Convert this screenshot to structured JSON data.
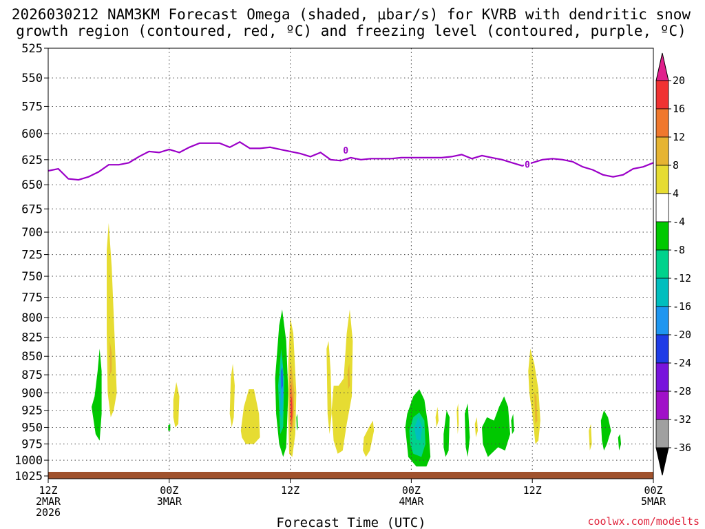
{
  "chart_data": {
    "type": "time-height-contour",
    "title_line1": "2026030212 NAM3KM Forecast Omega (shaded, μbar/s) for KVRB with dendritic snow",
    "title_line2": "growth region (contoured, red, ºC) and freezing level (contoured, purple, ºC)",
    "xlabel": "Forecast Time (UTC)",
    "credit": "coolwx.com/modelts",
    "y_ticks": [
      525,
      550,
      575,
      600,
      625,
      650,
      675,
      700,
      725,
      750,
      775,
      800,
      825,
      850,
      875,
      900,
      925,
      950,
      975,
      1000,
      1025
    ],
    "x_ticks": [
      {
        "hour": 0,
        "lines": [
          "12Z",
          "2MAR",
          "2026"
        ]
      },
      {
        "hour": 12,
        "lines": [
          "00Z",
          "3MAR"
        ]
      },
      {
        "hour": 24,
        "lines": [
          "12Z"
        ]
      },
      {
        "hour": 36,
        "lines": [
          "00Z",
          "4MAR"
        ]
      },
      {
        "hour": 48,
        "lines": [
          "12Z"
        ]
      },
      {
        "hour": 60,
        "lines": [
          "00Z",
          "5MAR"
        ]
      }
    ],
    "x_range_hours": [
      0,
      60
    ],
    "colorbar": {
      "labels": [
        "20",
        "16",
        "12",
        "8",
        "4",
        "-4",
        "-8",
        "-12",
        "-16",
        "-20",
        "-24",
        "-28",
        "-32",
        "-36"
      ],
      "colors": [
        "#e0208c",
        "#f03232",
        "#f0782d",
        "#e6b432",
        "#e6dc32",
        "#ffffff",
        "#00c800",
        "#00d28c",
        "#00bebe",
        "#1e96f0",
        "#1e3ce6",
        "#7814dc",
        "#a010c8",
        "#a0a0a0"
      ]
    },
    "freezing_level": {
      "label": "0",
      "label_at": [
        {
          "hour": 29.5,
          "p": 617
        },
        {
          "hour": 47.5,
          "p": 631
        }
      ],
      "hours": [
        0,
        1,
        2,
        3,
        4,
        5,
        6,
        7,
        8,
        9,
        10,
        11,
        12,
        13,
        14,
        15,
        16,
        17,
        18,
        19,
        20,
        21,
        22,
        23,
        24,
        25,
        26,
        27,
        28,
        29,
        30,
        31,
        32,
        33,
        34,
        35,
        36,
        37,
        38,
        39,
        40,
        41,
        42,
        43,
        44,
        45,
        46,
        47,
        48,
        49,
        50,
        51,
        52,
        53,
        54,
        55,
        56,
        57,
        58,
        59,
        60
      ],
      "pressure": [
        636,
        634,
        644,
        645,
        642,
        637,
        630,
        630,
        628,
        622,
        617,
        618,
        615,
        618,
        613,
        609,
        609,
        609,
        613,
        608,
        614,
        614,
        613,
        615,
        617,
        619,
        622,
        618,
        625,
        626,
        623,
        625,
        624,
        624,
        624,
        623,
        623,
        623,
        623,
        623,
        622,
        620,
        624,
        621,
        623,
        625,
        628,
        631,
        628,
        625,
        624,
        625,
        627,
        632,
        635,
        640,
        642,
        640,
        634,
        632,
        628
      ]
    },
    "omega_regions": [
      {
        "level": "-8",
        "color": "#00c800",
        "pts": [
          [
            4.3,
            920
          ],
          [
            4.6,
            905
          ],
          [
            4.9,
            870
          ],
          [
            5.1,
            840
          ],
          [
            5.3,
            870
          ],
          [
            5.3,
            930
          ],
          [
            5.1,
            970
          ],
          [
            4.7,
            960
          ]
        ]
      },
      {
        "level": "4",
        "color": "#e6dc32",
        "pts": [
          [
            5.8,
            720
          ],
          [
            6.0,
            690
          ],
          [
            6.3,
            740
          ],
          [
            6.6,
            830
          ],
          [
            6.8,
            900
          ],
          [
            6.5,
            925
          ],
          [
            6.2,
            935
          ],
          [
            5.9,
            900
          ],
          [
            5.8,
            820
          ]
        ]
      },
      {
        "level": "8",
        "color": "#e6b432",
        "pts": [
          [
            6.1,
            830
          ],
          [
            6.3,
            845
          ],
          [
            6.3,
            870
          ],
          [
            6.1,
            875
          ]
        ]
      },
      {
        "level": "4",
        "color": "#e6dc32",
        "pts": [
          [
            12.4,
            910
          ],
          [
            12.7,
            885
          ],
          [
            13.0,
            905
          ],
          [
            12.9,
            945
          ],
          [
            12.6,
            950
          ],
          [
            12.4,
            935
          ]
        ]
      },
      {
        "level": "-8",
        "color": "#00c800",
        "pts": [
          [
            11.9,
            947
          ],
          [
            12.1,
            945
          ],
          [
            12.1,
            955
          ],
          [
            11.9,
            955
          ]
        ]
      },
      {
        "level": "4",
        "color": "#e6dc32",
        "pts": [
          [
            18.1,
            880
          ],
          [
            18.3,
            860
          ],
          [
            18.5,
            890
          ],
          [
            18.4,
            935
          ],
          [
            18.2,
            950
          ],
          [
            18.0,
            930
          ]
        ]
      },
      {
        "level": "4",
        "color": "#e6dc32",
        "pts": [
          [
            19.1,
            955
          ],
          [
            19.4,
            920
          ],
          [
            19.9,
            895
          ],
          [
            20.4,
            895
          ],
          [
            20.9,
            930
          ],
          [
            21.0,
            965
          ],
          [
            20.4,
            975
          ],
          [
            19.6,
            975
          ],
          [
            19.2,
            965
          ]
        ]
      },
      {
        "level": "-8",
        "color": "#00c800",
        "pts": [
          [
            22.5,
            880
          ],
          [
            22.9,
            810
          ],
          [
            23.2,
            790
          ],
          [
            23.6,
            830
          ],
          [
            23.8,
            900
          ],
          [
            23.6,
            980
          ],
          [
            23.3,
            995
          ],
          [
            22.9,
            975
          ],
          [
            22.6,
            930
          ]
        ]
      },
      {
        "level": "-12",
        "color": "#00d28c",
        "pts": [
          [
            22.8,
            890
          ],
          [
            23.1,
            840
          ],
          [
            23.4,
            880
          ],
          [
            23.3,
            950
          ],
          [
            23.0,
            960
          ]
        ]
      },
      {
        "level": "-16",
        "color": "#00bebe",
        "pts": [
          [
            22.95,
            880
          ],
          [
            23.2,
            850
          ],
          [
            23.35,
            900
          ],
          [
            23.2,
            940
          ],
          [
            23.0,
            930
          ]
        ]
      },
      {
        "level": "-20",
        "color": "#1e96f0",
        "pts": [
          [
            23.05,
            880
          ],
          [
            23.2,
            860
          ],
          [
            23.3,
            900
          ],
          [
            23.15,
            920
          ]
        ]
      },
      {
        "level": "-24",
        "color": "#1e3ce6",
        "pts": [
          [
            23.12,
            870
          ],
          [
            23.22,
            865
          ],
          [
            23.25,
            890
          ],
          [
            23.15,
            895
          ]
        ]
      },
      {
        "level": "4",
        "color": "#e6dc32",
        "pts": [
          [
            23.8,
            860
          ],
          [
            24.0,
            800
          ],
          [
            24.3,
            820
          ],
          [
            24.6,
            900
          ],
          [
            24.5,
            960
          ],
          [
            24.2,
            995
          ],
          [
            23.9,
            990
          ],
          [
            23.8,
            940
          ]
        ]
      },
      {
        "level": "8",
        "color": "#e6b432",
        "pts": [
          [
            23.9,
            880
          ],
          [
            24.1,
            860
          ],
          [
            24.4,
            900
          ],
          [
            24.3,
            950
          ],
          [
            24.0,
            960
          ],
          [
            23.9,
            930
          ]
        ]
      },
      {
        "level": "12",
        "color": "#f0782d",
        "pts": [
          [
            23.95,
            900
          ],
          [
            24.1,
            885
          ],
          [
            24.3,
            920
          ],
          [
            24.15,
            950
          ],
          [
            24.0,
            940
          ]
        ]
      },
      {
        "level": "16",
        "color": "#f03232",
        "pts": [
          [
            24.05,
            910
          ],
          [
            24.15,
            905
          ],
          [
            24.2,
            935
          ],
          [
            24.1,
            940
          ]
        ]
      },
      {
        "level": "-8",
        "color": "#00c800",
        "pts": [
          [
            24.6,
            935
          ],
          [
            24.7,
            930
          ],
          [
            24.75,
            950
          ],
          [
            24.65,
            955
          ]
        ]
      },
      {
        "level": "4",
        "color": "#e6dc32",
        "pts": [
          [
            27.6,
            840
          ],
          [
            27.8,
            830
          ],
          [
            28.0,
            870
          ],
          [
            28.1,
            930
          ],
          [
            27.9,
            960
          ],
          [
            27.7,
            930
          ]
        ]
      },
      {
        "level": "4",
        "color": "#e6dc32",
        "pts": [
          [
            28.1,
            925
          ],
          [
            28.3,
            890
          ],
          [
            28.8,
            890
          ],
          [
            29.3,
            880
          ],
          [
            29.6,
            820
          ],
          [
            29.9,
            790
          ],
          [
            30.2,
            830
          ],
          [
            30.1,
            905
          ],
          [
            29.6,
            945
          ],
          [
            29.2,
            985
          ],
          [
            28.7,
            990
          ],
          [
            28.3,
            970
          ]
        ]
      },
      {
        "level": "8",
        "color": "#e6b432",
        "pts": [
          [
            29.7,
            870
          ],
          [
            29.85,
            860
          ],
          [
            29.9,
            890
          ],
          [
            29.75,
            895
          ]
        ]
      },
      {
        "level": "4",
        "color": "#e6dc32",
        "pts": [
          [
            31.2,
            985
          ],
          [
            31.3,
            965
          ],
          [
            31.8,
            950
          ],
          [
            32.2,
            940
          ],
          [
            32.3,
            955
          ],
          [
            31.9,
            985
          ],
          [
            31.5,
            995
          ]
        ]
      },
      {
        "level": "-8",
        "color": "#00c800",
        "pts": [
          [
            35.4,
            950
          ],
          [
            35.6,
            930
          ],
          [
            36.2,
            905
          ],
          [
            36.8,
            895
          ],
          [
            37.3,
            910
          ],
          [
            37.7,
            950
          ],
          [
            37.9,
            995
          ],
          [
            37.5,
            1010
          ],
          [
            36.5,
            1010
          ],
          [
            35.7,
            995
          ]
        ]
      },
      {
        "level": "-12",
        "color": "#00d28c",
        "pts": [
          [
            35.8,
            955
          ],
          [
            36.2,
            935
          ],
          [
            36.8,
            928
          ],
          [
            37.3,
            940
          ],
          [
            37.4,
            975
          ],
          [
            37.0,
            995
          ],
          [
            36.2,
            990
          ],
          [
            35.9,
            975
          ]
        ]
      },
      {
        "level": "-16",
        "color": "#00bebe",
        "pts": [
          [
            36.3,
            950
          ],
          [
            36.7,
            935
          ],
          [
            37.1,
            950
          ],
          [
            36.9,
            970
          ],
          [
            36.5,
            968
          ]
        ]
      },
      {
        "level": "4",
        "color": "#e6dc32",
        "pts": [
          [
            38.4,
            935
          ],
          [
            38.6,
            920
          ],
          [
            38.7,
            940
          ],
          [
            38.5,
            950
          ]
        ]
      },
      {
        "level": "-8",
        "color": "#00c800",
        "pts": [
          [
            39.2,
            960
          ],
          [
            39.5,
            925
          ],
          [
            39.8,
            935
          ],
          [
            39.7,
            985
          ],
          [
            39.4,
            995
          ],
          [
            39.2,
            980
          ]
        ]
      },
      {
        "level": "4",
        "color": "#e6dc32",
        "pts": [
          [
            40.5,
            925
          ],
          [
            40.65,
            915
          ],
          [
            40.7,
            945
          ],
          [
            40.6,
            960
          ]
        ]
      },
      {
        "level": "4",
        "color": "#e6dc32",
        "pts": [
          [
            42.3,
            945
          ],
          [
            42.5,
            935
          ],
          [
            42.6,
            955
          ],
          [
            42.4,
            965
          ]
        ]
      },
      {
        "level": "-8",
        "color": "#00c800",
        "pts": [
          [
            41.3,
            930
          ],
          [
            41.6,
            915
          ],
          [
            41.8,
            965
          ],
          [
            41.6,
            995
          ],
          [
            41.4,
            980
          ]
        ]
      },
      {
        "level": "-8",
        "color": "#00c800",
        "pts": [
          [
            43.0,
            950
          ],
          [
            43.5,
            935
          ],
          [
            44.2,
            940
          ],
          [
            44.7,
            920
          ],
          [
            45.2,
            905
          ],
          [
            45.6,
            920
          ],
          [
            45.8,
            960
          ],
          [
            45.3,
            985
          ],
          [
            44.6,
            980
          ],
          [
            43.6,
            995
          ],
          [
            43.1,
            975
          ]
        ]
      },
      {
        "level": "-8",
        "color": "#00c800",
        "pts": [
          [
            45.9,
            940
          ],
          [
            46.1,
            930
          ],
          [
            46.2,
            955
          ],
          [
            46.0,
            960
          ]
        ]
      },
      {
        "level": "4",
        "color": "#e6dc32",
        "pts": [
          [
            47.6,
            870
          ],
          [
            47.8,
            840
          ],
          [
            48.2,
            860
          ],
          [
            48.6,
            895
          ],
          [
            48.8,
            940
          ],
          [
            48.6,
            970
          ],
          [
            48.3,
            975
          ],
          [
            48.0,
            930
          ],
          [
            47.7,
            900
          ]
        ]
      },
      {
        "level": "8",
        "color": "#e6b432",
        "pts": [
          [
            48.2,
            900
          ],
          [
            48.4,
            905
          ],
          [
            48.5,
            940
          ],
          [
            48.3,
            945
          ]
        ]
      },
      {
        "level": "4",
        "color": "#e6dc32",
        "pts": [
          [
            53.6,
            955
          ],
          [
            53.8,
            945
          ],
          [
            53.9,
            975
          ],
          [
            53.7,
            985
          ]
        ]
      },
      {
        "level": "-8",
        "color": "#00c800",
        "pts": [
          [
            54.8,
            940
          ],
          [
            55.1,
            925
          ],
          [
            55.5,
            935
          ],
          [
            55.8,
            955
          ],
          [
            55.4,
            975
          ],
          [
            55.1,
            985
          ],
          [
            54.9,
            970
          ]
        ]
      },
      {
        "level": "-8",
        "color": "#00c800",
        "pts": [
          [
            56.5,
            965
          ],
          [
            56.7,
            960
          ],
          [
            56.8,
            975
          ],
          [
            56.6,
            985
          ]
        ]
      }
    ]
  }
}
